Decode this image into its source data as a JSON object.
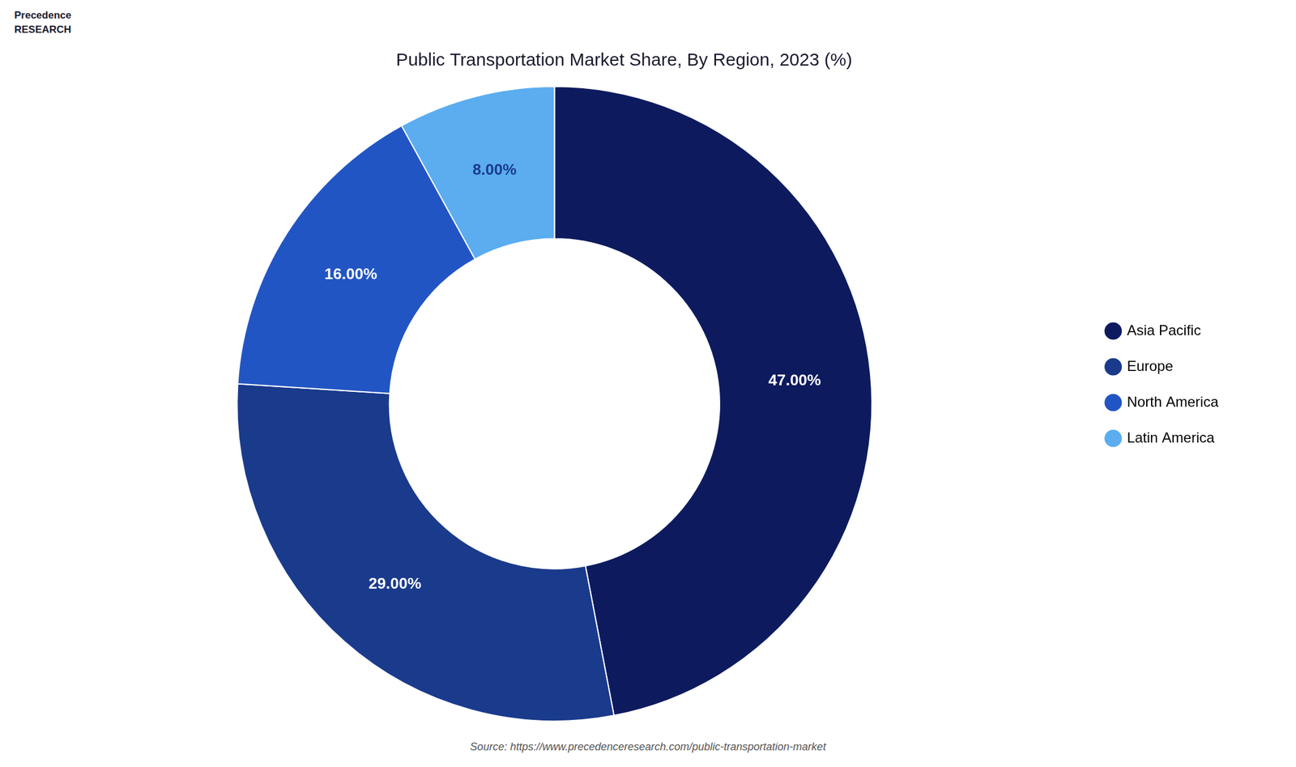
{
  "chart_data": {
    "type": "doughnut",
    "title": "Public Transportation Market Share, By Region, 2023 (%)",
    "categories": [
      "Asia Pacific",
      "Europe",
      "North America",
      "Latin America"
    ],
    "values": [
      47.0,
      29.0,
      16.0,
      8.0
    ],
    "value_labels": [
      "47.00%",
      "29.00%",
      "16.00%",
      "8.00%"
    ],
    "colors": [
      "#0d1b5e",
      "#1a3a8c",
      "#2255c4",
      "#5badf0"
    ],
    "data_labels": true,
    "legend": "right",
    "annotations": [
      "Precedence\nRESEARCH",
      "Source: https://www.precedenceresearch.com/public-transportation-market"
    ]
  }
}
